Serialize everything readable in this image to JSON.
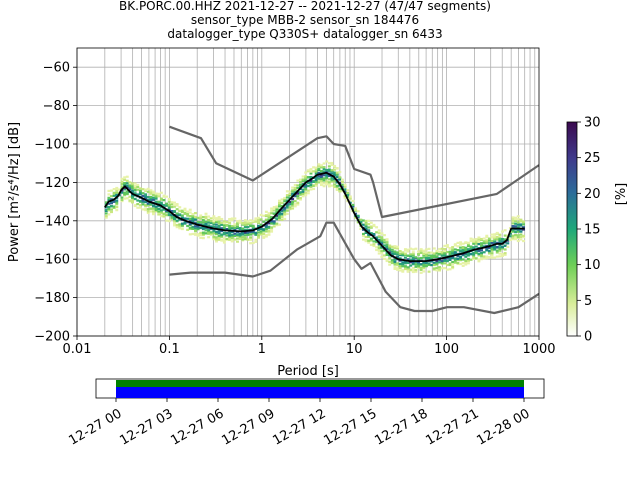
{
  "title_lines": [
    "BK.PORC.00.HHZ   2021-12-27 -- 2021-12-27  (47/47 segments)",
    "sensor_type MBB-2 sensor_sn 184476",
    "datalogger_type Q330S+ datalogger_sn 6433"
  ],
  "chart_data": {
    "type": "ppsd",
    "xlabel": "Period [s]",
    "ylabel": "Power [m²/s⁴/Hz] [dB]",
    "xscale": "log",
    "xlim": [
      0.01,
      1000
    ],
    "ylim": [
      -200,
      -50
    ],
    "xticks": [
      {
        "v": 0.01,
        "label": "0.01"
      },
      {
        "v": 0.1,
        "label": "0.1"
      },
      {
        "v": 1,
        "label": "1"
      },
      {
        "v": 10,
        "label": "10"
      },
      {
        "v": 100,
        "label": "100"
      },
      {
        "v": 1000,
        "label": "1000"
      }
    ],
    "yticks": [
      -200,
      -180,
      -160,
      -140,
      -120,
      -100,
      -80,
      -60
    ],
    "colorbar": {
      "label": "[%]",
      "min": 0,
      "max": 30,
      "ticks": [
        0,
        5,
        10,
        15,
        20,
        25,
        30
      ]
    },
    "mean_curve": [
      [
        0.02,
        -133
      ],
      [
        0.022,
        -130
      ],
      [
        0.025,
        -129
      ],
      [
        0.028,
        -127
      ],
      [
        0.03,
        -124
      ],
      [
        0.033,
        -122
      ],
      [
        0.036,
        -124
      ],
      [
        0.04,
        -126
      ],
      [
        0.05,
        -128
      ],
      [
        0.06,
        -130
      ],
      [
        0.08,
        -132
      ],
      [
        0.1,
        -135
      ],
      [
        0.12,
        -138
      ],
      [
        0.15,
        -140
      ],
      [
        0.2,
        -142
      ],
      [
        0.3,
        -144
      ],
      [
        0.4,
        -145
      ],
      [
        0.6,
        -145.5
      ],
      [
        0.8,
        -145
      ],
      [
        1,
        -143
      ],
      [
        1.3,
        -139
      ],
      [
        1.6,
        -134
      ],
      [
        2,
        -129
      ],
      [
        2.5,
        -124
      ],
      [
        3,
        -120
      ],
      [
        3.5,
        -118
      ],
      [
        4,
        -116
      ],
      [
        5,
        -115
      ],
      [
        6,
        -117
      ],
      [
        7,
        -121
      ],
      [
        8,
        -126
      ],
      [
        10,
        -136
      ],
      [
        12,
        -143
      ],
      [
        14,
        -146
      ],
      [
        16,
        -148
      ],
      [
        20,
        -153
      ],
      [
        25,
        -158
      ],
      [
        30,
        -160
      ],
      [
        40,
        -161
      ],
      [
        60,
        -161
      ],
      [
        80,
        -160
      ],
      [
        100,
        -159
      ],
      [
        150,
        -157
      ],
      [
        200,
        -155
      ],
      [
        250,
        -154
      ],
      [
        300,
        -153
      ],
      [
        350,
        -152
      ],
      [
        400,
        -152
      ],
      [
        450,
        -150
      ],
      [
        500,
        -144
      ],
      [
        700,
        -144
      ]
    ],
    "nhnm": [
      [
        0.1,
        -91
      ],
      [
        0.22,
        -97
      ],
      [
        0.32,
        -110
      ],
      [
        0.8,
        -119
      ],
      [
        4,
        -97
      ],
      [
        5,
        -96
      ],
      [
        6,
        -100
      ],
      [
        8,
        -101
      ],
      [
        10,
        -113
      ],
      [
        15,
        -116
      ],
      [
        16,
        -120
      ],
      [
        20,
        -138
      ],
      [
        350,
        -126
      ],
      [
        1000,
        -111
      ]
    ],
    "nlnm": [
      [
        0.1,
        -168
      ],
      [
        0.17,
        -167
      ],
      [
        0.4,
        -167
      ],
      [
        0.8,
        -169
      ],
      [
        1.24,
        -166
      ],
      [
        2.4,
        -155
      ],
      [
        4.3,
        -148
      ],
      [
        5,
        -141
      ],
      [
        6,
        -141
      ],
      [
        10,
        -160
      ],
      [
        12,
        -165
      ],
      [
        15,
        -162
      ],
      [
        21.9,
        -177
      ],
      [
        31.6,
        -185
      ],
      [
        45,
        -187
      ],
      [
        70,
        -187
      ],
      [
        101,
        -185
      ],
      [
        154,
        -185
      ],
      [
        328,
        -188
      ],
      [
        600,
        -185
      ],
      [
        1000,
        -178
      ]
    ],
    "time_axis": {
      "segments": "47/47",
      "coverage_colors": [
        "#008000",
        "#0000ff"
      ],
      "ticks": [
        "12-27 00",
        "12-27 03",
        "12-27 06",
        "12-27 09",
        "12-27 12",
        "12-27 15",
        "12-27 18",
        "12-27 21",
        "12-28 00"
      ]
    }
  }
}
